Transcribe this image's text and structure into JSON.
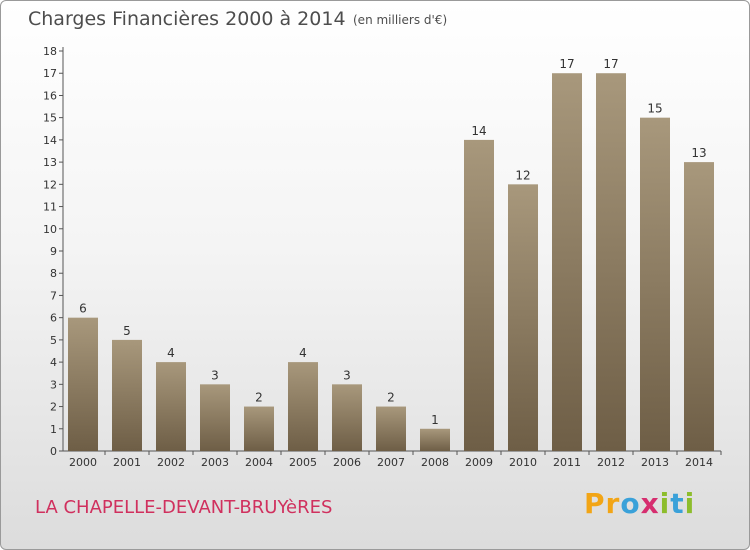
{
  "header": {
    "title": "Charges Financières 2000 à 2014",
    "subtitle": "(en milliers d'€)"
  },
  "footer": {
    "commune": "LA CHAPELLE-DEVANT-BRUYèRES",
    "logo_letters": [
      {
        "ch": "P",
        "color": "#f2a516"
      },
      {
        "ch": "r",
        "color": "#f2a516"
      },
      {
        "ch": "o",
        "color": "#3aa1d9"
      },
      {
        "ch": "x",
        "color": "#d62e6f"
      },
      {
        "ch": "i",
        "color": "#8dbd2c"
      },
      {
        "ch": "t",
        "color": "#3aa1d9"
      },
      {
        "ch": "i",
        "color": "#8dbd2c"
      }
    ]
  },
  "colors": {
    "bar_top": "#a8987c",
    "bar_bottom": "#6e5e46",
    "commune_text": "#d0305e",
    "title_text": "#4d4d4d"
  },
  "chart_data": {
    "type": "bar",
    "categories": [
      "2000",
      "2001",
      "2002",
      "2003",
      "2004",
      "2005",
      "2006",
      "2007",
      "2008",
      "2009",
      "2010",
      "2011",
      "2012",
      "2013",
      "2014"
    ],
    "values": [
      6,
      5,
      4,
      3,
      2,
      4,
      3,
      2,
      1,
      14,
      12,
      17,
      17,
      15,
      13
    ],
    "ylim": [
      0,
      18
    ],
    "yticks": [
      0,
      1,
      2,
      3,
      4,
      5,
      6,
      7,
      8,
      9,
      10,
      11,
      12,
      13,
      14,
      15,
      16,
      17,
      18
    ],
    "grid": false
  }
}
